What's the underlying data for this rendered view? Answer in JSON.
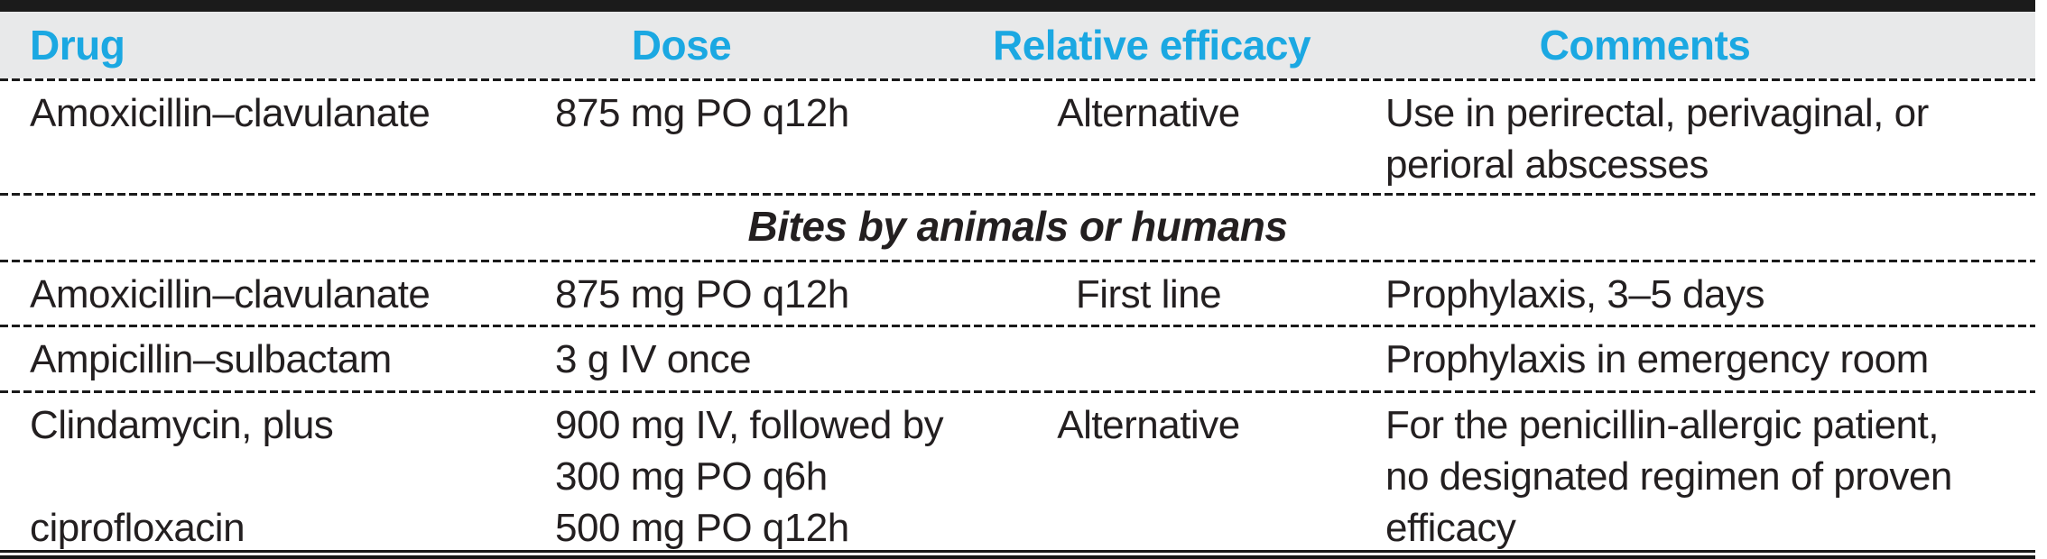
{
  "table": {
    "accent_color": "#1ba8e2",
    "header_bg_color": "#e8e9ea",
    "text_color": "#231F20",
    "columns": [
      {
        "label": "Drug"
      },
      {
        "label": "Dose"
      },
      {
        "label": "Relative efficacy"
      },
      {
        "label": "Comments"
      }
    ],
    "rows": [
      {
        "type": "data",
        "drug": "Amoxicillin–clavulanate",
        "dose": "875 mg PO q12h",
        "efficacy": "Alternative",
        "comments": "Use in perirectal, perivaginal, or\nperioral abscesses"
      },
      {
        "type": "section",
        "label": "Bites by animals or humans"
      },
      {
        "type": "data",
        "drug": "Amoxicillin–clavulanate",
        "dose": "875 mg PO q12h",
        "efficacy": "First line",
        "comments": "Prophylaxis, 3–5 days"
      },
      {
        "type": "data",
        "drug": "Ampicillin–sulbactam",
        "dose": "3 g IV once",
        "efficacy": "",
        "comments": "Prophylaxis in emergency room"
      },
      {
        "type": "data",
        "drug": "Clindamycin, plus\n\nciprofloxacin",
        "dose": "900 mg IV, followed by\n300 mg PO q6h\n500 mg PO q12h",
        "efficacy": "Alternative",
        "comments": "For the penicillin-allergic patient,\nno designated regimen of proven\nefficacy"
      }
    ]
  }
}
